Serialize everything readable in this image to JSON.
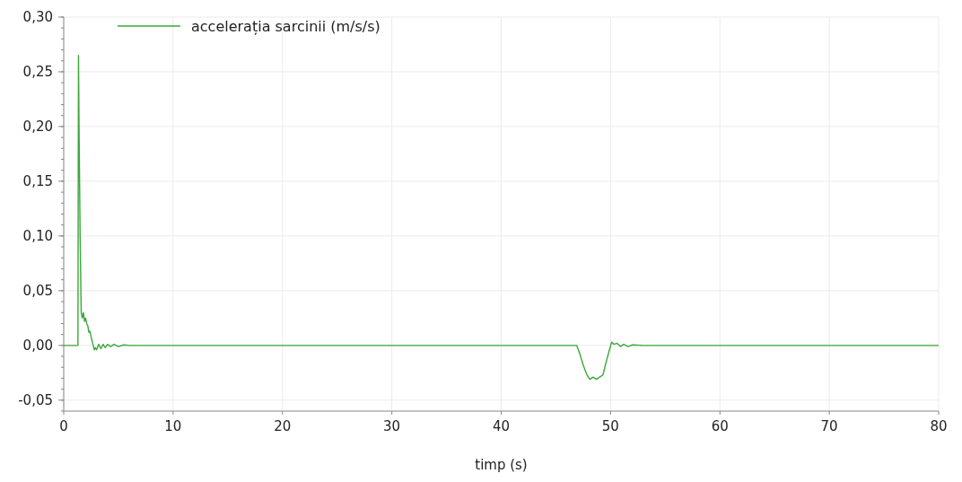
{
  "chart_data": {
    "type": "line",
    "xlabel": "timp (s)",
    "xlim": [
      0,
      80
    ],
    "xticks": [
      0,
      10,
      20,
      30,
      40,
      50,
      60,
      70,
      80
    ],
    "ylim": [
      -0.06,
      0.3
    ],
    "yticks": [
      {
        "value": -0.05,
        "label": "-0,05"
      },
      {
        "value": 0,
        "label": "0,00"
      },
      {
        "value": 0.05,
        "label": "0,05"
      },
      {
        "value": 0.1,
        "label": "0,10"
      },
      {
        "value": 0.15,
        "label": "0,15"
      },
      {
        "value": 0.2,
        "label": "0,20"
      },
      {
        "value": 0.25,
        "label": "0,25"
      },
      {
        "value": 0.3,
        "label": "0,30"
      }
    ],
    "grid": true,
    "legend": "top left",
    "marker": "none",
    "line_style": "solid",
    "series": [
      {
        "name": "accelerația sarcinii (m/s/s)",
        "color": "#3aa83a",
        "x": [
          0,
          1.3,
          1.35,
          1.4,
          1.5,
          1.6,
          1.7,
          1.8,
          1.9,
          2.0,
          2.1,
          2.2,
          2.3,
          2.4,
          2.5,
          2.6,
          2.7,
          2.8,
          2.9,
          3.0,
          3.2,
          3.4,
          3.6,
          3.8,
          4.0,
          4.3,
          4.6,
          5.0,
          5.5,
          6.0,
          7.0,
          46.9,
          47.2,
          47.5,
          47.8,
          48.1,
          48.4,
          48.7,
          49.0,
          49.3,
          49.6,
          49.9,
          50.1,
          50.3,
          50.6,
          50.9,
          51.2,
          51.6,
          52.0,
          53.0,
          54.0,
          80
        ],
        "values": [
          0,
          0,
          0.265,
          0.2,
          0.1,
          0.03,
          0.025,
          0.03,
          0.022,
          0.025,
          0.02,
          0.018,
          0.012,
          0.013,
          0.008,
          0.004,
          0.0,
          -0.004,
          -0.002,
          -0.004,
          0.001,
          -0.003,
          0.001,
          -0.002,
          0.001,
          -0.001,
          0.001,
          -0.001,
          0.0005,
          0,
          0,
          0,
          -0.008,
          -0.018,
          -0.026,
          -0.031,
          -0.029,
          -0.031,
          -0.029,
          -0.027,
          -0.015,
          -0.004,
          0.003,
          0.001,
          0.002,
          -0.001,
          0.001,
          -0.001,
          0.0005,
          0,
          0,
          0
        ]
      }
    ]
  }
}
